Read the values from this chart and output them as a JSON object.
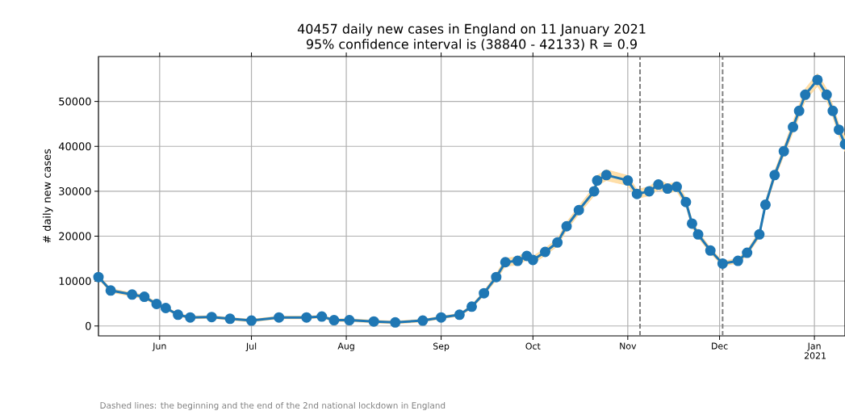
{
  "chart_data": {
    "type": "line",
    "title": "40457 daily new cases in England on 11 January 2021",
    "subtitle": "95% confidence interval is (38840 - 42133) R = 0.9",
    "ylabel": "# daily new cases",
    "x": [
      "2020-05-12",
      "2020-05-16",
      "2020-05-23",
      "2020-05-27",
      "2020-05-31",
      "2020-06-03",
      "2020-06-07",
      "2020-06-11",
      "2020-06-18",
      "2020-06-24",
      "2020-07-01",
      "2020-07-10",
      "2020-07-19",
      "2020-07-24",
      "2020-07-28",
      "2020-08-02",
      "2020-08-10",
      "2020-08-17",
      "2020-08-26",
      "2020-09-01",
      "2020-09-07",
      "2020-09-11",
      "2020-09-15",
      "2020-09-19",
      "2020-09-22",
      "2020-09-26",
      "2020-09-29",
      "2020-10-01",
      "2020-10-05",
      "2020-10-09",
      "2020-10-12",
      "2020-10-16",
      "2020-10-21",
      "2020-10-22",
      "2020-10-25",
      "2020-11-01",
      "2020-11-04",
      "2020-11-08",
      "2020-11-11",
      "2020-11-14",
      "2020-11-17",
      "2020-11-20",
      "2020-11-22",
      "2020-11-24",
      "2020-11-28",
      "2020-12-02",
      "2020-12-07",
      "2020-12-10",
      "2020-12-14",
      "2020-12-16",
      "2020-12-19",
      "2020-12-22",
      "2020-12-25",
      "2020-12-27",
      "2020-12-29",
      "2021-01-02",
      "2021-01-05",
      "2021-01-07",
      "2021-01-09",
      "2021-01-11"
    ],
    "series": [
      {
        "color": "#1f77b4",
        "values": [
          10900,
          7900,
          7000,
          6500,
          4900,
          4000,
          2500,
          1900,
          2000,
          1600,
          1200,
          1900,
          1900,
          2100,
          1300,
          1300,
          1000,
          800,
          1200,
          1900,
          2500,
          4300,
          7300,
          10900,
          14200,
          14500,
          15600,
          14700,
          16500,
          18600,
          22200,
          25800,
          30000,
          32400,
          33600,
          32400,
          29400,
          30000,
          31500,
          30600,
          31000,
          27600,
          22800,
          20400,
          16800,
          13900,
          14500,
          16300,
          20400,
          27000,
          33600,
          38900,
          44300,
          47900,
          51500,
          54800,
          51500,
          47900,
          43700,
          40457
        ],
        "lower": [
          10400,
          7500,
          6600,
          6100,
          4500,
          3700,
          2200,
          1600,
          1700,
          1300,
          900,
          1600,
          1600,
          1800,
          1000,
          1000,
          700,
          500,
          900,
          1600,
          2200,
          3900,
          6800,
          10200,
          13300,
          13600,
          14700,
          13900,
          15700,
          17800,
          21300,
          24900,
          29000,
          31300,
          32400,
          31300,
          28400,
          29000,
          30400,
          29600,
          30000,
          26700,
          22000,
          19700,
          16200,
          13400,
          14000,
          15700,
          19700,
          26200,
          32700,
          37900,
          43100,
          46600,
          50200,
          53400,
          50200,
          46600,
          42400,
          38840
        ],
        "upper": [
          11400,
          8300,
          7400,
          6900,
          5300,
          4300,
          2800,
          2200,
          2300,
          1900,
          1500,
          2200,
          2200,
          2400,
          1600,
          1600,
          1300,
          1100,
          1500,
          2200,
          2800,
          4700,
          7800,
          11600,
          15100,
          15400,
          16500,
          15500,
          17300,
          19400,
          23100,
          26700,
          31000,
          33500,
          34800,
          33500,
          30400,
          31000,
          32600,
          31600,
          32000,
          28500,
          23600,
          21100,
          17400,
          14400,
          15000,
          16900,
          21100,
          27800,
          34500,
          39900,
          45500,
          49200,
          52800,
          56200,
          52800,
          49200,
          45000,
          42133
        ]
      }
    ],
    "xlim": [
      "2020-05-12",
      "2021-01-11"
    ],
    "xticks": [
      {
        "value": "2020-06-01",
        "label": "Jun"
      },
      {
        "value": "2020-07-01",
        "label": "Jul"
      },
      {
        "value": "2020-08-01",
        "label": "Aug"
      },
      {
        "value": "2020-09-01",
        "label": "Sep"
      },
      {
        "value": "2020-10-01",
        "label": "Oct"
      },
      {
        "value": "2020-11-01",
        "label": "Nov"
      },
      {
        "value": "2020-12-01",
        "label": "Dec"
      },
      {
        "value": "2021-01-01",
        "label": "Jan 2021"
      }
    ],
    "ylim": [
      -2200,
      60000
    ],
    "yticks": [
      0,
      10000,
      20000,
      30000,
      40000,
      50000
    ],
    "grid": true,
    "marker": "circle",
    "ref_lines": [
      {
        "axis": "x",
        "value": "2020-11-05",
        "color": "#808080",
        "line_style": "dashed"
      },
      {
        "axis": "x",
        "value": "2020-12-02",
        "color": "#808080",
        "line_style": "dashed"
      }
    ],
    "annotations": [
      "Dashed lines: the beginning and the end of the 2nd national lockdown in England"
    ]
  }
}
